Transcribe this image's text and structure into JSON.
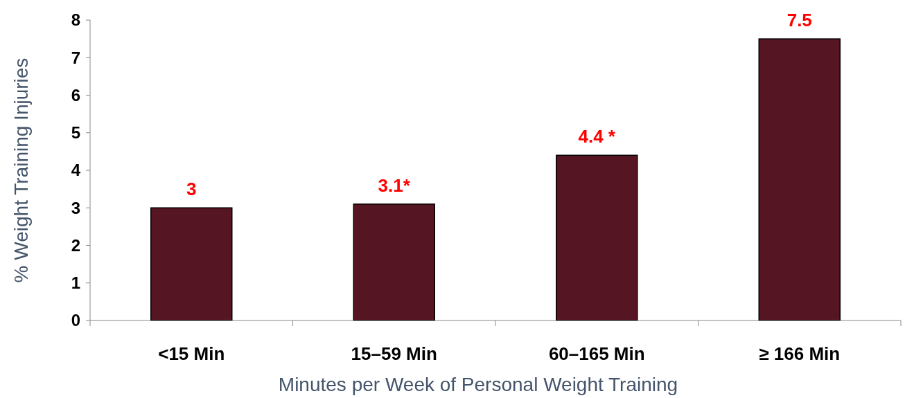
{
  "chart_data": {
    "type": "bar",
    "xlabel": "Minutes per Week of Personal Weight Training",
    "ylabel": "% Weight  Training Injuries",
    "categories": [
      "<15 Min",
      "15–59 Min",
      "60–165 Min",
      "≥ 166 Min"
    ],
    "values": [
      3,
      3.1,
      4.4,
      7.5
    ],
    "color": "#561523",
    "value_labels": [
      "3",
      "3.1*",
      "4.4 *",
      "7.5"
    ],
    "ylim": [
      0,
      8
    ],
    "yticks": [
      0,
      1,
      2,
      3,
      4,
      5,
      6,
      7,
      8
    ],
    "grid": false
  }
}
